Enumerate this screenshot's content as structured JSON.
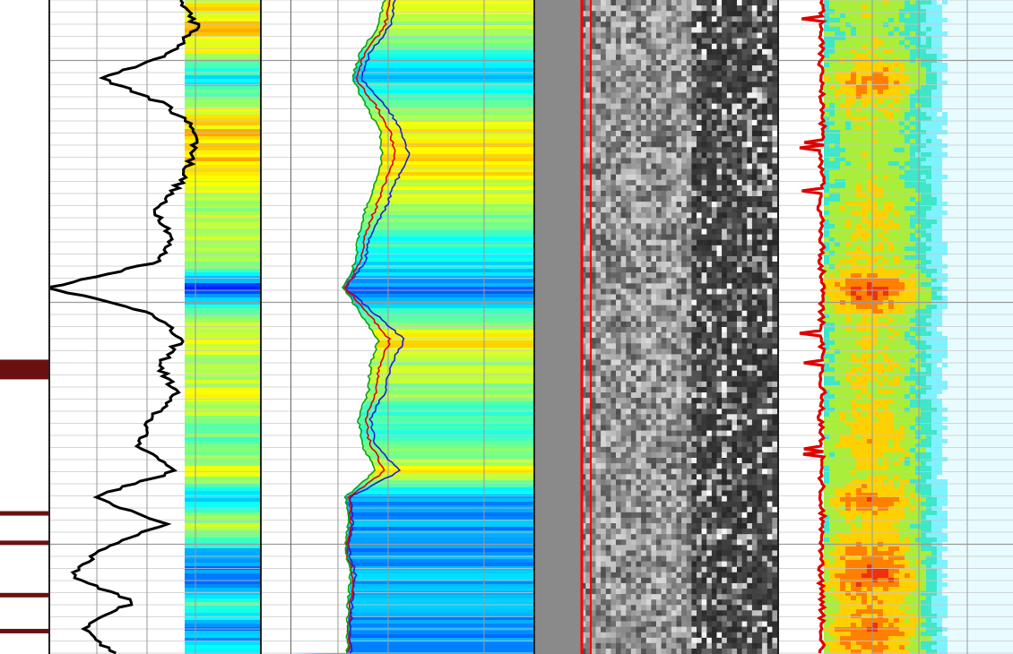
{
  "chart_data": {
    "type": "line",
    "title": "",
    "xlabel": "",
    "ylabel": "",
    "depth_samples": [
      0,
      0.04,
      0.08,
      0.12,
      0.16,
      0.2,
      0.24,
      0.28,
      0.32,
      0.36,
      0.4,
      0.44,
      0.48,
      0.52,
      0.56,
      0.6,
      0.64,
      0.68,
      0.72,
      0.76,
      0.8,
      0.84,
      0.88,
      0.92,
      0.96,
      1
    ],
    "tracks": [
      {
        "kind": "curve-with-colorfill",
        "series": [
          {
            "name": "",
            "color": "#000000",
            "values": [
              0.62,
              0.7,
              0.58,
              0.25,
              0.55,
              0.7,
              0.68,
              0.62,
              0.5,
              0.58,
              0.52,
              0.0,
              0.5,
              0.62,
              0.52,
              0.6,
              0.48,
              0.42,
              0.6,
              0.2,
              0.55,
              0.25,
              0.1,
              0.4,
              0.15,
              0.3
            ]
          }
        ]
      },
      {
        "kind": "multi-curve-with-colorfill",
        "series": [
          {
            "name": "",
            "color": "#1f1fd0",
            "values": [
              0.55,
              0.5,
              0.3,
              0.2,
              0.45,
              0.62,
              0.7,
              0.55,
              0.45,
              0.3,
              0.25,
              0.05,
              0.35,
              0.65,
              0.5,
              0.45,
              0.3,
              0.35,
              0.6,
              0.1,
              0.12,
              0.08,
              0.15,
              0.12,
              0.1,
              0.1
            ]
          },
          {
            "name": "",
            "color": "#e00000",
            "values": [
              0.5,
              0.45,
              0.25,
              0.15,
              0.35,
              0.5,
              0.55,
              0.45,
              0.35,
              0.25,
              0.2,
              0.05,
              0.28,
              0.5,
              0.4,
              0.35,
              0.25,
              0.3,
              0.45,
              0.08,
              0.1,
              0.06,
              0.12,
              0.1,
              0.08,
              0.08
            ]
          },
          {
            "name": "",
            "color": "#10a010",
            "values": [
              0.45,
              0.38,
              0.2,
              0.12,
              0.25,
              0.4,
              0.42,
              0.35,
              0.25,
              0.18,
              0.15,
              0.03,
              0.2,
              0.38,
              0.3,
              0.28,
              0.18,
              0.22,
              0.35,
              0.05,
              0.08,
              0.05,
              0.1,
              0.08,
              0.07,
              0.07
            ]
          }
        ]
      },
      {
        "kind": "grayscale-image",
        "series": [
          {
            "name": "",
            "color": "#ff0000",
            "values": [
              0.03,
              0.03,
              0.03,
              0.03,
              0.03,
              0.03,
              0.03,
              0.03,
              0.03,
              0.03,
              0.03,
              0.03,
              0.03,
              0.03,
              0.03,
              0.03,
              0.03,
              0.03,
              0.03,
              0.03,
              0.03,
              0.03,
              0.03,
              0.03,
              0.03,
              0.03
            ]
          }
        ]
      },
      {
        "kind": "spectrogram-with-curve",
        "series": [
          {
            "name": "",
            "color": "#e00000",
            "values": [
              0.25,
              0.22,
              0.25,
              0.2,
              0.3,
              0.28,
              0.22,
              0.26,
              0.2,
              0.28,
              0.24,
              0.3,
              0.22,
              0.28,
              0.25,
              0.3,
              0.2,
              0.28,
              0.22,
              0.26,
              0.3,
              0.25,
              0.22,
              0.28,
              0.24,
              0.26
            ]
          }
        ]
      }
    ],
    "markers_left": [
      0.565,
      0.785,
      0.83,
      0.91,
      0.965
    ],
    "grid": true,
    "legend": "none"
  },
  "colors": {
    "marker": "#6b1010",
    "grid_major": "#9a9a9a",
    "grid_minor": "#c8c8c8",
    "track_border": "#222222",
    "gray_strip": "#8a8a8a"
  }
}
